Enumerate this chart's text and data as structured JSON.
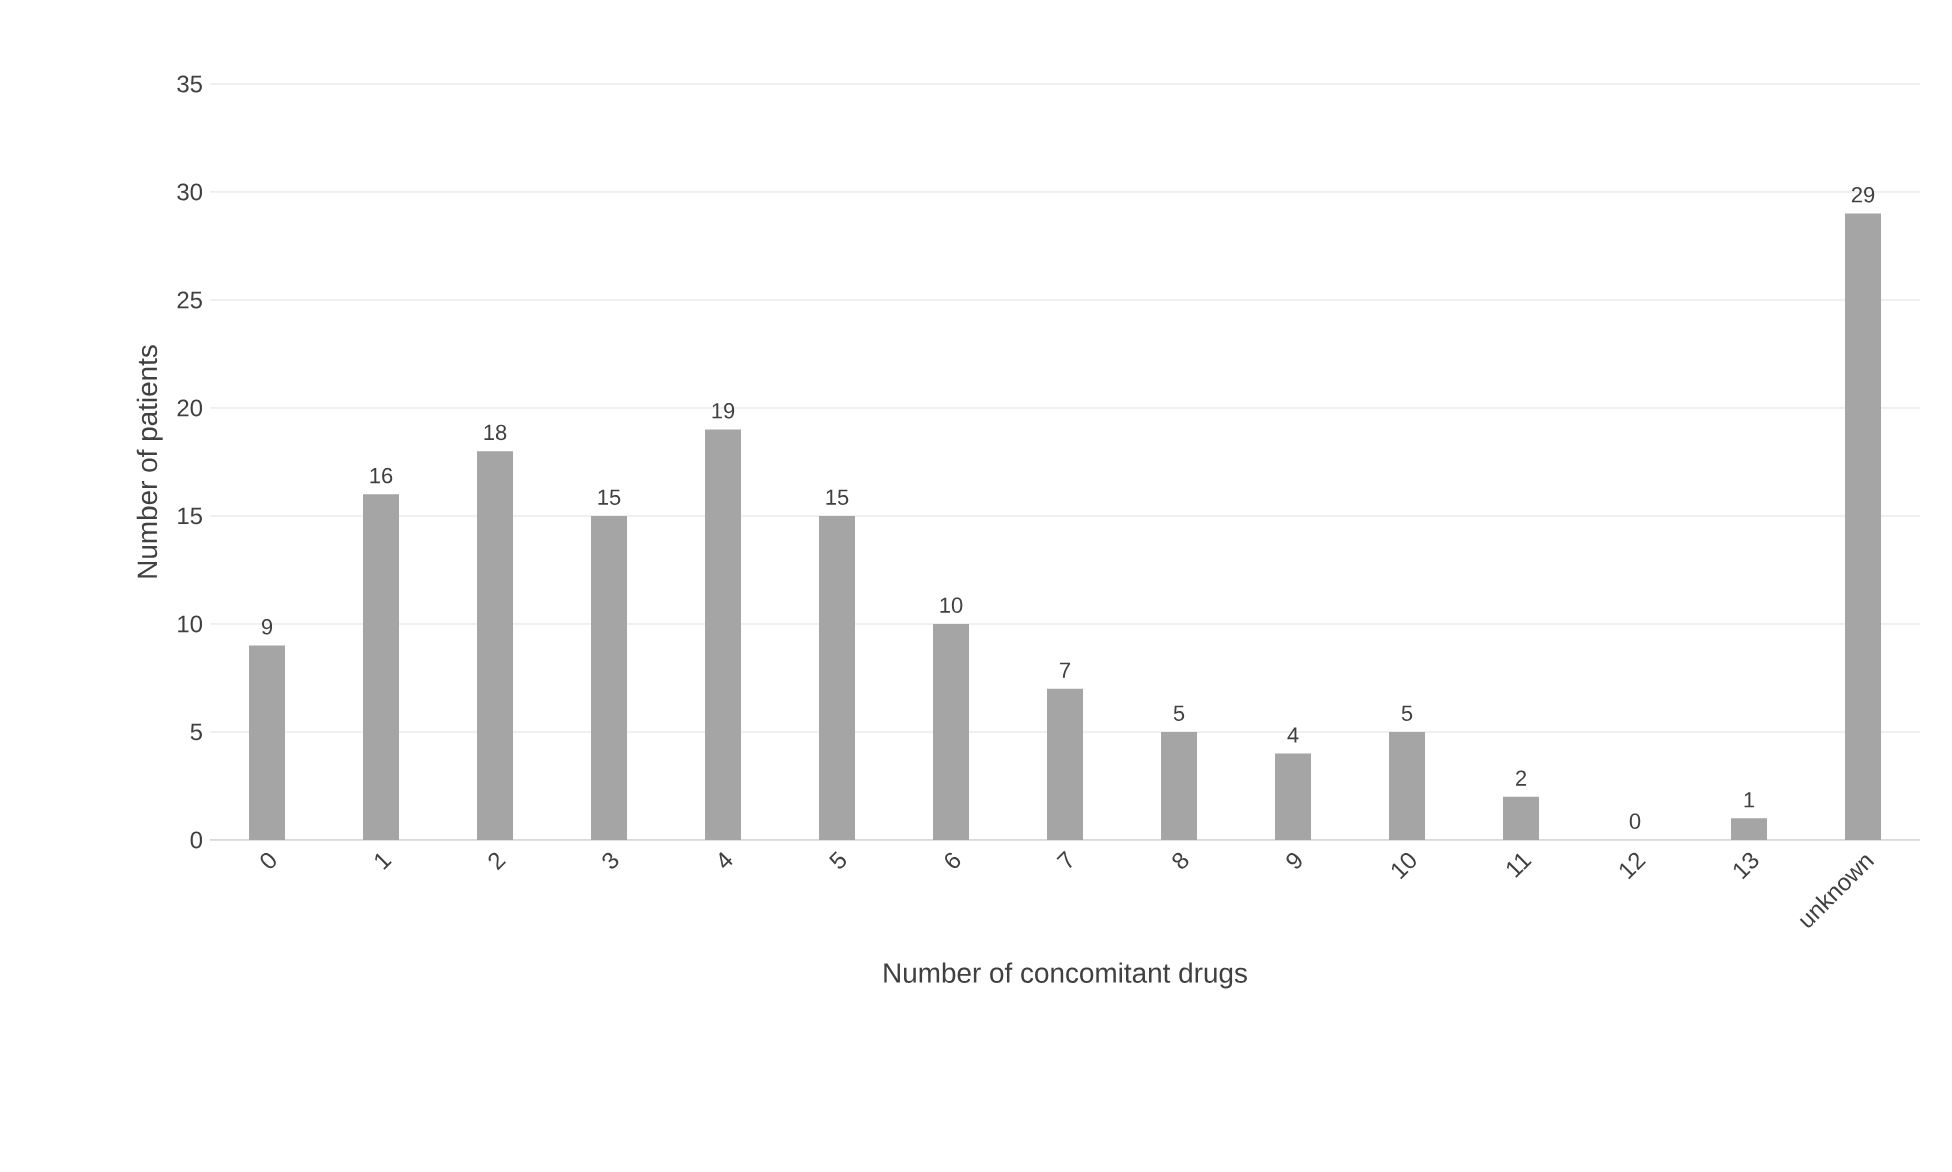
{
  "chart_data": {
    "type": "bar",
    "xlabel": "Number of concomitant drugs",
    "ylabel": "Number of patients",
    "categories": [
      "0",
      "1",
      "2",
      "3",
      "4",
      "5",
      "6",
      "7",
      "8",
      "9",
      "10",
      "11",
      "12",
      "13",
      "unknown"
    ],
    "values": [
      9,
      16,
      18,
      15,
      19,
      15,
      10,
      7,
      5,
      4,
      5,
      2,
      0,
      1,
      29
    ],
    "color": "#a5a5a5",
    "ylim": [
      0,
      35
    ],
    "yticks": [
      0,
      5,
      10,
      15,
      20,
      25,
      30,
      35
    ],
    "grid": "y",
    "data_labels": true
  }
}
